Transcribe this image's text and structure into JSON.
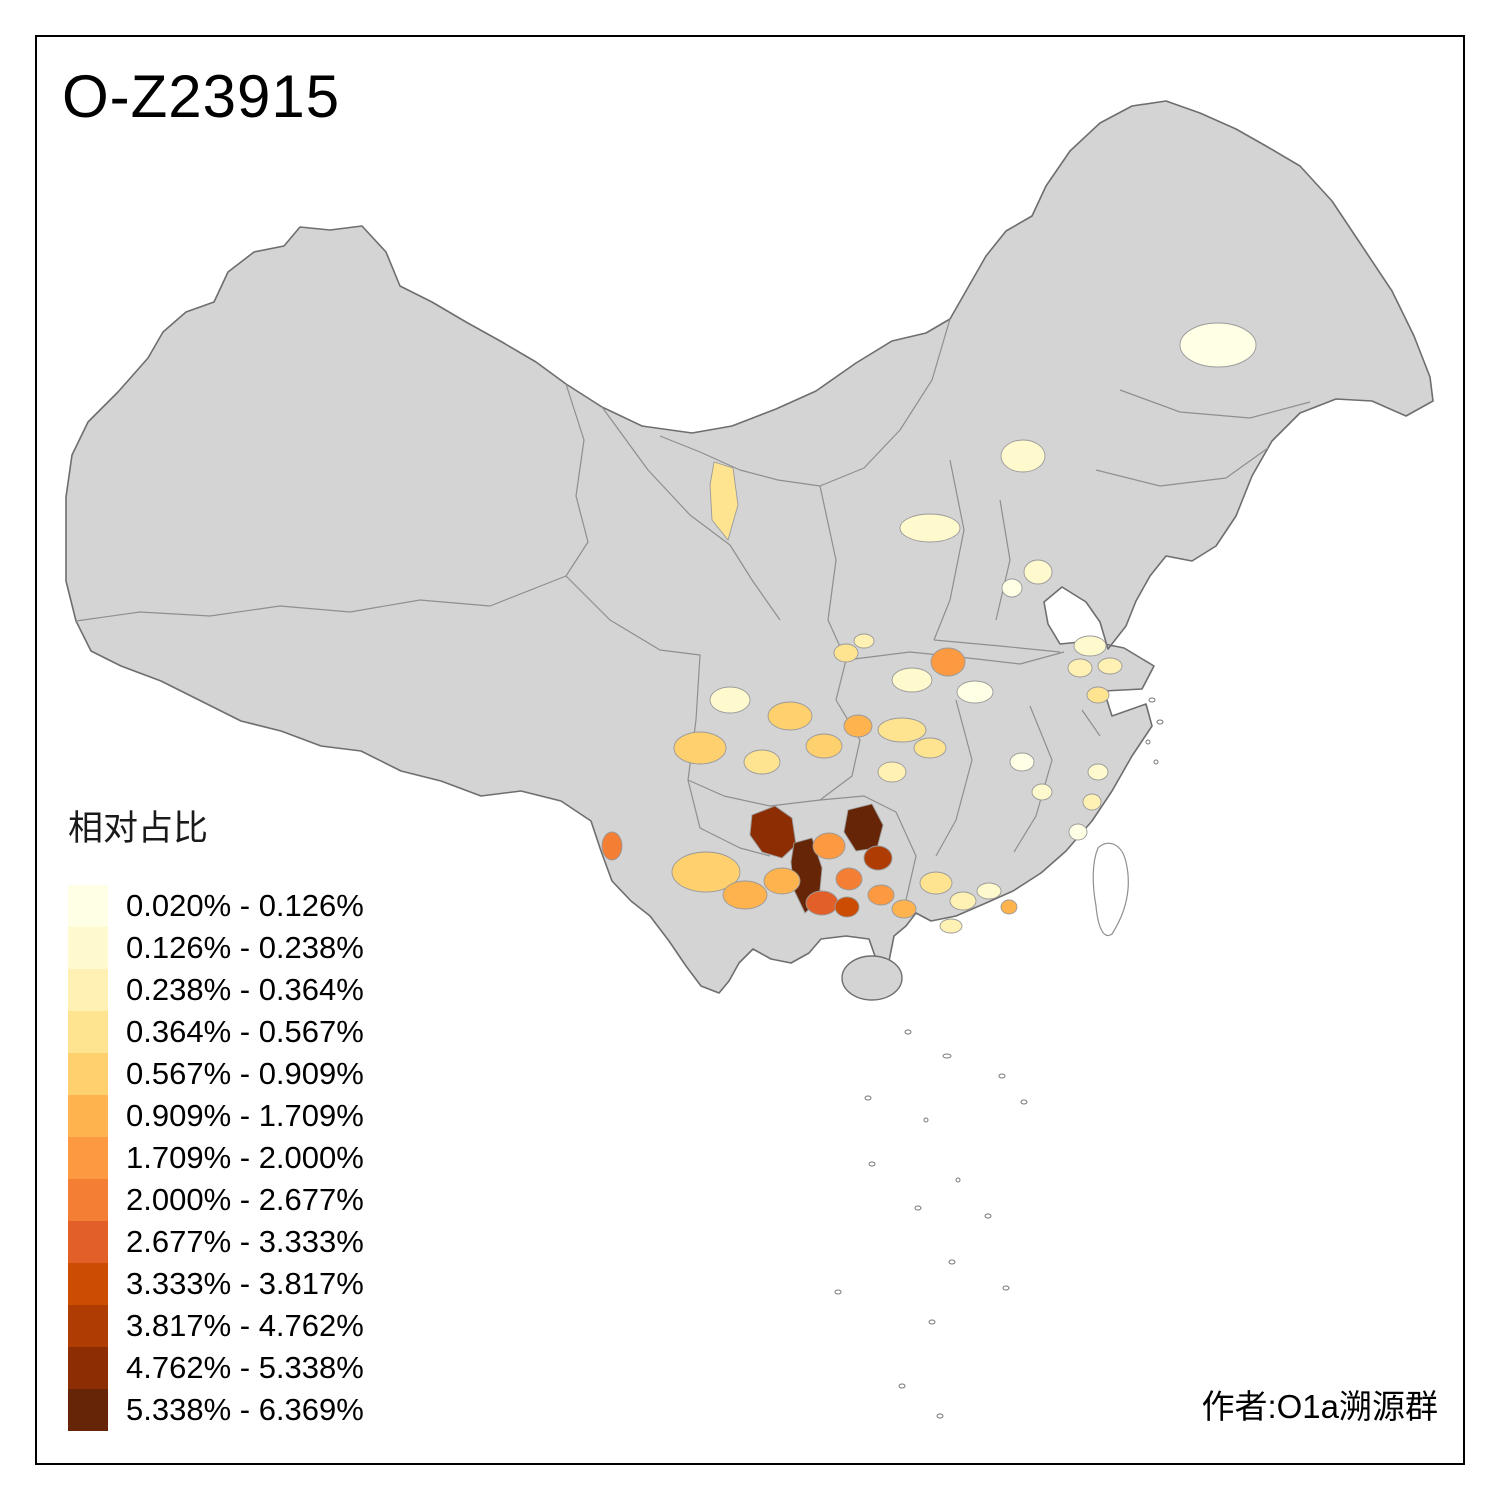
{
  "title": "O-Z23915",
  "credit": "作者:O1a溯源群",
  "legend": {
    "title": "相对占比",
    "items": [
      {
        "label": "0.020% - 0.126%",
        "color": "#FFFFE5"
      },
      {
        "label": "0.126% - 0.238%",
        "color": "#FFF9CE"
      },
      {
        "label": "0.238% - 0.364%",
        "color": "#FFF0B3"
      },
      {
        "label": "0.364% - 0.567%",
        "color": "#FEE391"
      },
      {
        "label": "0.567% - 0.909%",
        "color": "#FED16E"
      },
      {
        "label": "0.909% - 1.709%",
        "color": "#FEB34F"
      },
      {
        "label": "1.709% - 2.000%",
        "color": "#FD9A41"
      },
      {
        "label": "2.000% - 2.677%",
        "color": "#F47E34"
      },
      {
        "label": "2.677% - 3.333%",
        "color": "#E25F27"
      },
      {
        "label": "3.333% - 3.817%",
        "color": "#CC4C02"
      },
      {
        "label": "3.817% - 4.762%",
        "color": "#AF3D03"
      },
      {
        "label": "4.762% - 5.338%",
        "color": "#8C2D04"
      },
      {
        "label": "5.338% - 6.369%",
        "color": "#662506"
      }
    ]
  },
  "map": {
    "land_fill": "#D4D4D4",
    "island_fill": "#FFFFFF",
    "border_color": "#6E6E6E",
    "province_border_color": "#8F8F8F",
    "background": "#FFFFFF"
  },
  "regions": [
    {
      "color": "#FFFFE5"
    },
    {
      "color": "#FFF9CE"
    },
    {
      "color": "#FFF9CE"
    },
    {
      "color": "#FEE391"
    },
    {
      "color": "#FFF9CE"
    },
    {
      "color": "#FFFFE5"
    },
    {
      "color": "#FFF9CE"
    },
    {
      "color": "#FFF0B3"
    },
    {
      "color": "#FD9A41"
    },
    {
      "color": "#FFF9CE"
    },
    {
      "color": "#FFFFE5"
    },
    {
      "color": "#FFF0B3"
    },
    {
      "color": "#FEE391"
    },
    {
      "color": "#FFF9CE"
    },
    {
      "color": "#FED16E"
    },
    {
      "color": "#FED16E"
    },
    {
      "color": "#FEE391"
    },
    {
      "color": "#FED16E"
    },
    {
      "color": "#FEB34F"
    },
    {
      "color": "#FEE391"
    },
    {
      "color": "#FEE391"
    },
    {
      "color": "#FFF0B3"
    },
    {
      "color": "#FFFFE5"
    },
    {
      "color": "#FFF9CE"
    },
    {
      "color": "#FFF9CE"
    },
    {
      "color": "#FFF0B3"
    },
    {
      "color": "#FFFFE5"
    },
    {
      "color": "#F47E34"
    },
    {
      "color": "#FED16E"
    },
    {
      "color": "#FEB34F"
    },
    {
      "color": "#8C2D04"
    },
    {
      "color": "#662506"
    },
    {
      "color": "#662506"
    },
    {
      "color": "#AF3D03"
    },
    {
      "color": "#FD9A41"
    },
    {
      "color": "#F47E34"
    },
    {
      "color": "#E25F27"
    },
    {
      "color": "#CC4C02"
    },
    {
      "color": "#FEB34F"
    },
    {
      "color": "#FD9A41"
    },
    {
      "color": "#FEB34F"
    },
    {
      "color": "#FEE391"
    },
    {
      "color": "#FFF0B3"
    },
    {
      "color": "#FFF9CE"
    },
    {
      "color": "#FEB34F"
    },
    {
      "color": "#FFF0B3"
    },
    {
      "color": "#FEE391"
    },
    {
      "color": "#FFF0B3"
    }
  ]
}
